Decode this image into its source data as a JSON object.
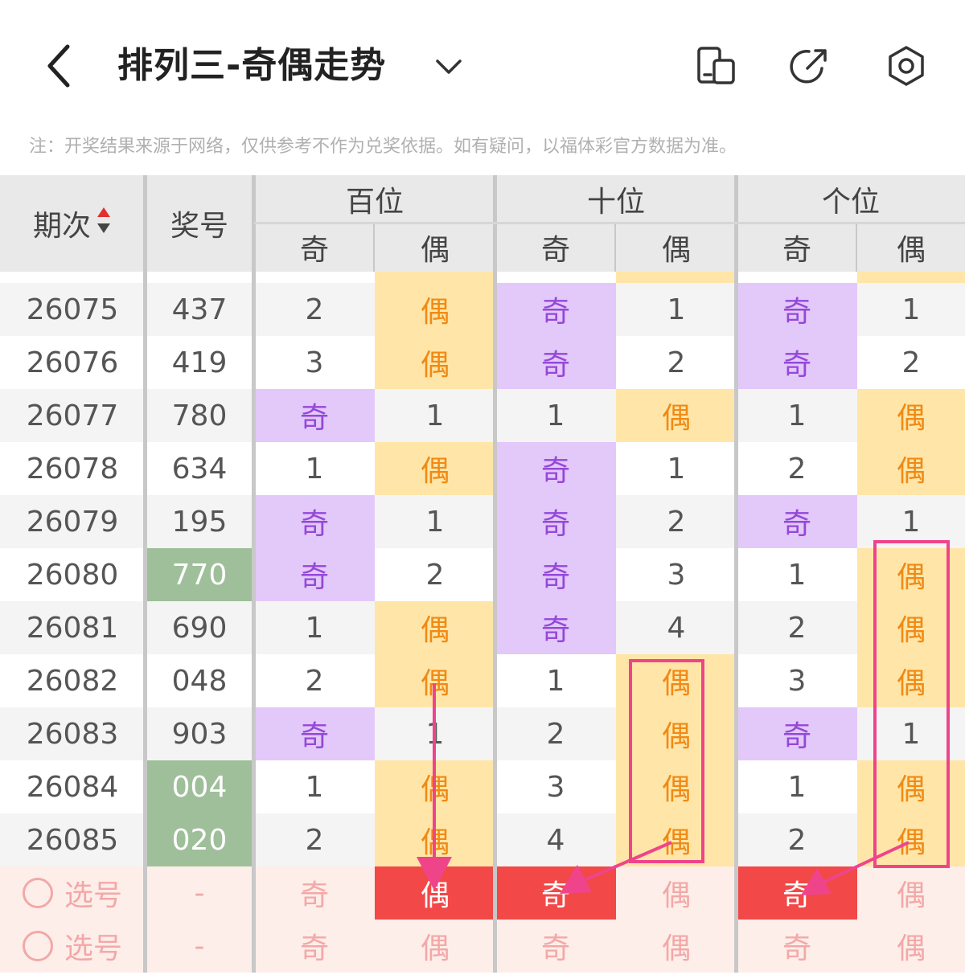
{
  "header": {
    "title": "排列三-奇偶走势",
    "notice": "注：开奖结果来源于网络，仅供参考不作为兑奖依据。如有疑问，以福体彩官方数据为准。"
  },
  "table": {
    "col_period": "期次",
    "col_number": "奖号",
    "groups": [
      "百位",
      "十位",
      "个位"
    ],
    "odd_label": "奇",
    "even_label": "偶",
    "rows": [
      {
        "period": "26075",
        "number": "437",
        "win": false,
        "cells": [
          "2",
          "偶",
          "奇",
          "1",
          "奇",
          "1"
        ]
      },
      {
        "period": "26076",
        "number": "419",
        "win": false,
        "cells": [
          "3",
          "偶",
          "奇",
          "2",
          "奇",
          "2"
        ]
      },
      {
        "period": "26077",
        "number": "780",
        "win": false,
        "cells": [
          "奇",
          "1",
          "1",
          "偶",
          "1",
          "偶"
        ]
      },
      {
        "period": "26078",
        "number": "634",
        "win": false,
        "cells": [
          "1",
          "偶",
          "奇",
          "1",
          "2",
          "偶"
        ]
      },
      {
        "period": "26079",
        "number": "195",
        "win": false,
        "cells": [
          "奇",
          "1",
          "奇",
          "2",
          "奇",
          "1"
        ]
      },
      {
        "period": "26080",
        "number": "770",
        "win": true,
        "cells": [
          "奇",
          "2",
          "奇",
          "3",
          "1",
          "偶"
        ]
      },
      {
        "period": "26081",
        "number": "690",
        "win": false,
        "cells": [
          "1",
          "偶",
          "奇",
          "4",
          "2",
          "偶"
        ]
      },
      {
        "period": "26082",
        "number": "048",
        "win": false,
        "cells": [
          "2",
          "偶",
          "1",
          "偶",
          "3",
          "偶"
        ]
      },
      {
        "period": "26083",
        "number": "903",
        "win": false,
        "cells": [
          "奇",
          "1",
          "2",
          "偶",
          "奇",
          "1"
        ]
      },
      {
        "period": "26084",
        "number": "004",
        "win": true,
        "cells": [
          "1",
          "偶",
          "3",
          "偶",
          "1",
          "偶"
        ]
      },
      {
        "period": "26085",
        "number": "020",
        "win": true,
        "cells": [
          "2",
          "偶",
          "4",
          "偶",
          "2",
          "偶"
        ]
      }
    ],
    "select_rows": [
      {
        "label": "选号",
        "number": "-",
        "selected": [
          false,
          true,
          true,
          false,
          true,
          false
        ]
      },
      {
        "label": "选号",
        "number": "-",
        "selected": [
          false,
          false,
          false,
          false,
          false,
          false
        ]
      }
    ]
  },
  "colors": {
    "odd_bg": "#e3c8fa",
    "odd_text": "#9448d8",
    "even_bg": "#ffe6a8",
    "even_text": "#f08a15",
    "win_bg": "#9fbf9a",
    "selected_bg": "#f24848",
    "select_row_bg": "#fdeee9",
    "annotation": "#f0448a"
  },
  "icons": [
    "back-arrow-icon",
    "chevron-down-icon",
    "device-switch-icon",
    "share-icon",
    "settings-hex-icon",
    "sort-arrows-icon",
    "radio-circle-icon"
  ]
}
